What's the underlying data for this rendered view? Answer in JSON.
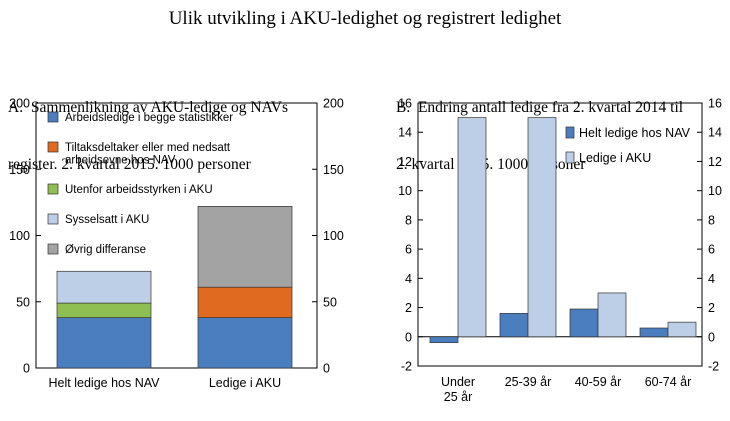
{
  "page": {
    "title": "Ulik utvikling i AKU-ledighet og registrert ledighet"
  },
  "chart_data": [
    {
      "id": "A",
      "type": "bar",
      "stacked": true,
      "title_lines": [
        "A.  Sammenlikning av AKU-ledige og NAVs",
        "register. 2. kvartal 2015. 1000 personer"
      ],
      "categories": [
        "Helt ledige hos NAV",
        "Ledige i AKU"
      ],
      "series": [
        {
          "name": "Arbeidsledige i begge statistikker",
          "values": [
            38,
            38
          ],
          "color": "#4a7ebf"
        },
        {
          "name_lines": [
            "Tiltaksdeltaker eller med nedsatt",
            "arbeidsevne hos NAV"
          ],
          "values": [
            0,
            23
          ],
          "color": "#e06a1f"
        },
        {
          "name": "Utenfor arbeidsstyrken i AKU",
          "values": [
            11,
            0
          ],
          "color": "#8fbe52"
        },
        {
          "name": "Sysselsatt i AKU",
          "values": [
            24,
            0
          ],
          "color": "#bccfe6"
        },
        {
          "name": "Øvrig differanse",
          "values": [
            0,
            61
          ],
          "color": "#a3a3a3"
        }
      ],
      "ylim": [
        0,
        200
      ],
      "yticks": [
        0,
        50,
        100,
        150,
        200
      ],
      "ytick_labels": [
        "0",
        "50",
        "100",
        "150",
        "200"
      ],
      "grid": false,
      "legend_position": "inside-top-left"
    },
    {
      "id": "B",
      "type": "bar",
      "title_lines": [
        "B.  Endring antall ledige fra 2. kvartal 2014 til",
        "2. kvartal 2015. 1000 personer"
      ],
      "categories": [
        [
          "Under",
          "25 år"
        ],
        [
          "25-39 år"
        ],
        [
          "40-59 år"
        ],
        [
          "60-74 år"
        ]
      ],
      "series": [
        {
          "name": "Helt ledige hos NAV",
          "values": [
            -0.4,
            1.6,
            1.9,
            0.6
          ],
          "color": "#4a7ebf"
        },
        {
          "name": "Ledige i AKU",
          "values": [
            15,
            15,
            3,
            1
          ],
          "color": "#bccfe6"
        }
      ],
      "ylim": [
        -2,
        16
      ],
      "yticks": [
        -2,
        0,
        2,
        4,
        6,
        8,
        10,
        12,
        14,
        16
      ],
      "ytick_labels": [
        "-2",
        "0",
        "2",
        "4",
        "6",
        "8",
        "10",
        "12",
        "14",
        "16"
      ],
      "grid": false,
      "legend_position": "inside-top-right"
    }
  ]
}
